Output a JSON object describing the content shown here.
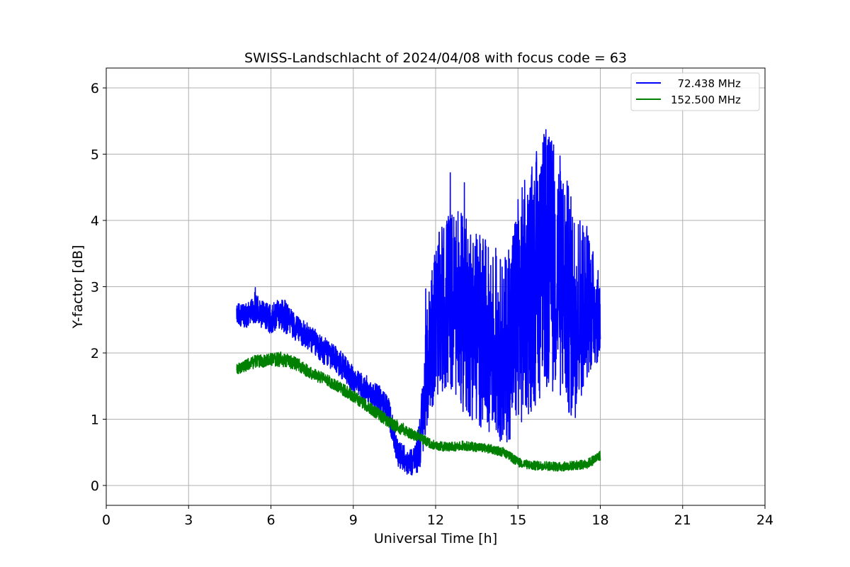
{
  "chart_data": {
    "type": "line",
    "title": "SWISS-Landschlacht of 2024/04/08 with focus code = 63",
    "xlabel": "Universal Time [h]",
    "ylabel": "Y-factor [dB]",
    "xlim": [
      0,
      24
    ],
    "ylim": [
      -0.3,
      6.3
    ],
    "xticks": [
      0,
      3,
      6,
      9,
      12,
      15,
      18,
      21,
      24
    ],
    "yticks": [
      0,
      1,
      2,
      3,
      4,
      5,
      6
    ],
    "grid": true,
    "legend_position": "top-right",
    "series": [
      {
        "name": "  72.438 MHz",
        "color": "#0000ff",
        "x": [
          4.75,
          5.0,
          5.5,
          6.0,
          6.3,
          6.5,
          7.0,
          7.5,
          8.0,
          8.5,
          9.0,
          9.5,
          10.0,
          10.3,
          10.6,
          11.0,
          11.3,
          11.5,
          11.8,
          12.0,
          12.5,
          13.0,
          13.5,
          14.0,
          14.5,
          15.0,
          15.5,
          16.0,
          16.5,
          17.0,
          17.5,
          18.0
        ],
        "y": [
          2.6,
          2.55,
          2.65,
          2.5,
          2.6,
          2.55,
          2.35,
          2.2,
          2.0,
          1.85,
          1.6,
          1.4,
          1.3,
          1.1,
          0.5,
          0.35,
          0.4,
          0.9,
          2.2,
          2.5,
          2.8,
          2.6,
          2.4,
          2.2,
          2.0,
          2.6,
          3.0,
          3.4,
          3.2,
          2.6,
          2.8,
          2.5
        ],
        "amplitude": [
          0.15,
          0.18,
          0.22,
          0.22,
          0.25,
          0.25,
          0.2,
          0.2,
          0.22,
          0.2,
          0.2,
          0.2,
          0.2,
          0.22,
          0.2,
          0.2,
          0.25,
          0.6,
          1.1,
          1.2,
          1.4,
          1.5,
          1.5,
          1.4,
          1.4,
          1.8,
          1.9,
          2.0,
          1.9,
          1.7,
          1.2,
          0.6
        ]
      },
      {
        "name": "152.500 MHz",
        "color": "#008000",
        "x": [
          4.75,
          5.0,
          5.5,
          6.0,
          6.5,
          7.0,
          7.5,
          8.0,
          8.5,
          9.0,
          9.5,
          10.0,
          10.5,
          11.0,
          11.5,
          12.0,
          12.5,
          13.0,
          13.5,
          14.0,
          14.5,
          15.0,
          15.5,
          16.0,
          16.5,
          17.0,
          17.5,
          18.0
        ],
        "y": [
          1.75,
          1.8,
          1.88,
          1.9,
          1.9,
          1.82,
          1.68,
          1.6,
          1.48,
          1.35,
          1.2,
          1.05,
          0.9,
          0.8,
          0.7,
          0.6,
          0.58,
          0.6,
          0.58,
          0.55,
          0.5,
          0.35,
          0.3,
          0.3,
          0.28,
          0.3,
          0.32,
          0.45
        ],
        "amplitude": [
          0.08,
          0.09,
          0.1,
          0.1,
          0.11,
          0.1,
          0.09,
          0.09,
          0.09,
          0.09,
          0.09,
          0.09,
          0.09,
          0.08,
          0.08,
          0.07,
          0.07,
          0.07,
          0.07,
          0.07,
          0.07,
          0.07,
          0.07,
          0.07,
          0.07,
          0.07,
          0.07,
          0.08
        ]
      }
    ]
  }
}
